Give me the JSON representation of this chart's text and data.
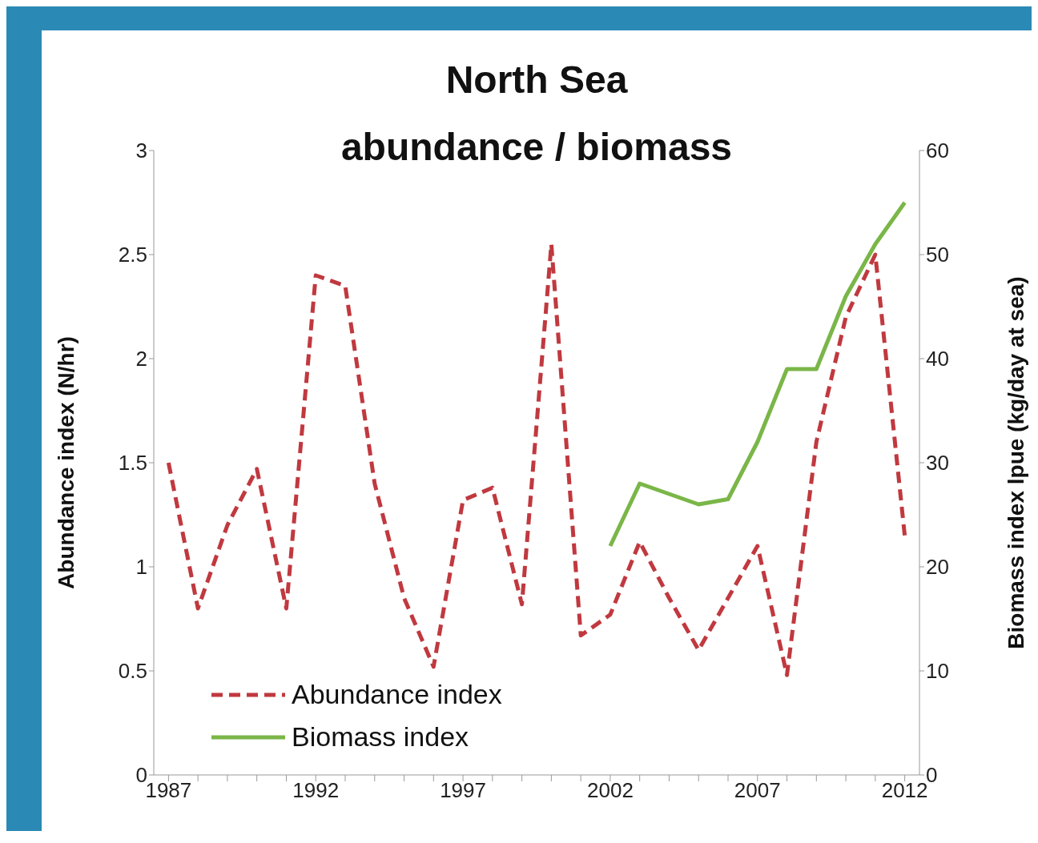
{
  "chart_data": {
    "type": "line",
    "title": "North Sea",
    "subtitle": "abundance / biomass",
    "ylabel": "Abundance index (N/hr)",
    "y2label": "Biomass index lpue (kg/day at sea)",
    "x": [
      1987,
      1988,
      1989,
      1990,
      1991,
      1992,
      1993,
      1994,
      1995,
      1996,
      1997,
      1998,
      1999,
      2000,
      2001,
      2002,
      2003,
      2004,
      2005,
      2006,
      2007,
      2008,
      2009,
      2010,
      2011,
      2012
    ],
    "series": [
      {
        "name": "Abundance index",
        "color": "#c0393f",
        "line_style": "dashed",
        "values": [
          1.5,
          0.8,
          1.2,
          1.47,
          0.8,
          2.4,
          2.35,
          1.4,
          0.85,
          0.52,
          1.32,
          1.38,
          0.82,
          2.55,
          0.67,
          0.77,
          1.12,
          0.85,
          0.6,
          0.85,
          1.1,
          0.48,
          1.6,
          2.2,
          2.5,
          1.15
        ]
      },
      {
        "name": "Biomass index",
        "color": "#7ab648",
        "line_style": "solid",
        "axis": "y2",
        "values": [
          null,
          null,
          null,
          null,
          null,
          null,
          null,
          null,
          null,
          null,
          null,
          null,
          null,
          null,
          null,
          22,
          28,
          27,
          26,
          26.5,
          32,
          39,
          39,
          46,
          51,
          55
        ]
      }
    ],
    "xlim": [
      1986.5,
      2012.5
    ],
    "xticks": [
      1987,
      {
        "value": 1988,
        "label": null
      },
      {
        "value": 1989,
        "label": null
      },
      {
        "value": 1990,
        "label": null
      },
      {
        "value": 1991,
        "label": null
      },
      1992,
      {
        "value": 1993,
        "label": null
      },
      {
        "value": 1994,
        "label": null
      },
      {
        "value": 1995,
        "label": null
      },
      {
        "value": 1996,
        "label": null
      },
      1997,
      {
        "value": 1998,
        "label": null
      },
      {
        "value": 1999,
        "label": null
      },
      {
        "value": 2000,
        "label": null
      },
      {
        "value": 2001,
        "label": null
      },
      2002,
      {
        "value": 2003,
        "label": null
      },
      {
        "value": 2004,
        "label": null
      },
      {
        "value": 2005,
        "label": null
      },
      {
        "value": 2006,
        "label": null
      },
      2007,
      {
        "value": 2008,
        "label": null
      },
      {
        "value": 2009,
        "label": null
      },
      {
        "value": 2010,
        "label": null
      },
      {
        "value": 2011,
        "label": null
      },
      2012
    ],
    "ylim": [
      0,
      3
    ],
    "yticks": [
      0,
      0.5,
      1,
      1.5,
      2,
      2.5,
      3
    ],
    "y2lim": [
      0,
      60
    ],
    "y2ticks": [
      0,
      10,
      20,
      30,
      40,
      50,
      60
    ],
    "grid": false,
    "legend": "bottom left",
    "marker": "none"
  }
}
